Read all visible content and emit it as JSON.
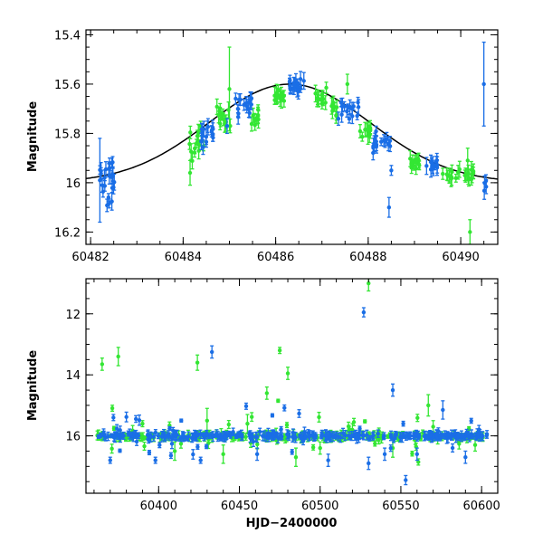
{
  "chart_data": [
    {
      "type": "scatter",
      "title": "",
      "xlabel": "",
      "ylabel": "Magnitude",
      "xlim": [
        60481.9,
        60490.8
      ],
      "ylim": [
        16.25,
        15.38
      ],
      "y_inverted": true,
      "x_ticks": [
        60482,
        60484,
        60486,
        60488,
        60490
      ],
      "y_ticks": [
        15.4,
        15.6,
        15.8,
        16,
        16.2
      ],
      "model_curve": {
        "type": "gaussian",
        "baseline": 16.0,
        "amplitude": 0.4,
        "center": 60486.3,
        "sigma": 1.75
      },
      "series": [
        {
          "color": "#33e633",
          "seed_blocks": [
            [
              60484.1,
              60484.45,
              15.85,
              0.05,
              14
            ],
            [
              60484.7,
              60485.05,
              15.74,
              0.03,
              14
            ],
            [
              60485.45,
              60485.7,
              15.74,
              0.02,
              10
            ],
            [
              60485.95,
              60486.25,
              15.65,
              0.01,
              14
            ],
            [
              60486.85,
              60487.1,
              15.66,
              0.02,
              12
            ],
            [
              60487.2,
              60487.35,
              15.71,
              0.02,
              8
            ],
            [
              60487.8,
              60488.05,
              15.79,
              0.015,
              12
            ],
            [
              60488.9,
              60489.2,
              15.91,
              0.015,
              12
            ],
            [
              60489.6,
              60490.3,
              15.97,
              0.01,
              22
            ]
          ],
          "points": [
            [
              60484.15,
              15.96,
              0.05
            ],
            [
              60485.0,
              15.62,
              0.17
            ],
            [
              60487.55,
              15.6,
              0.04
            ],
            [
              60490.2,
              16.2,
              0.05
            ],
            [
              60490.15,
              15.91,
              0.05
            ]
          ]
        },
        {
          "color": "#1a6ee6",
          "seed_blocks": [
            [
              60482.2,
              60482.55,
              15.99,
              0.04,
              24
            ],
            [
              60484.35,
              60484.65,
              15.81,
              0.03,
              16
            ],
            [
              60485.1,
              60485.5,
              15.68,
              0.02,
              16
            ],
            [
              60486.3,
              60486.65,
              15.61,
              0.015,
              18
            ],
            [
              60487.35,
              60487.8,
              15.7,
              0.02,
              16
            ],
            [
              60488.1,
              60488.5,
              15.84,
              0.02,
              16
            ],
            [
              60489.25,
              60489.5,
              15.93,
              0.01,
              12
            ],
            [
              60490.5,
              60490.58,
              16.02,
              0.02,
              4
            ]
          ],
          "points": [
            [
              60482.2,
              15.99,
              0.17
            ],
            [
              60484.95,
              15.77,
              0.03
            ],
            [
              60488.5,
              15.95,
              0.02
            ],
            [
              60488.45,
              16.1,
              0.04
            ],
            [
              60490.5,
              15.6,
              0.17
            ]
          ]
        }
      ]
    },
    {
      "type": "scatter",
      "title": "",
      "xlabel": "HJD−2400000",
      "ylabel": "Magnitude",
      "xlim": [
        60355,
        60610
      ],
      "ylim": [
        17.88,
        10.85
      ],
      "y_inverted": true,
      "x_ticks": [
        60400,
        60450,
        60500,
        60550,
        60600
      ],
      "y_ticks": [
        12,
        14,
        16
      ],
      "series": [
        {
          "color": "#33e633",
          "baseline": 16.02,
          "x_range": [
            60362,
            60602
          ],
          "count": 260,
          "points": [
            [
              60365,
              13.65,
              0.2
            ],
            [
              60375,
              13.4,
              0.3
            ],
            [
              60424,
              13.6,
              0.25
            ],
            [
              60467,
              14.6,
              0.2
            ],
            [
              60475,
              13.2,
              0.1
            ],
            [
              60480,
              13.95,
              0.2
            ],
            [
              60474,
              14.85,
              0.05
            ],
            [
              60530,
              11.0,
              0.25
            ],
            [
              60567,
              15.0,
              0.35
            ],
            [
              60390,
              15.6,
              0.1
            ],
            [
              60410,
              16.5,
              0.3
            ],
            [
              60430,
              15.5,
              0.4
            ],
            [
              60440,
              16.6,
              0.3
            ],
            [
              60455,
              15.6,
              0.3
            ],
            [
              60485,
              16.7,
              0.3
            ],
            [
              60500,
              16.4,
              0.2
            ],
            [
              60520,
              15.8,
              0.2
            ],
            [
              60545,
              16.4,
              0.3
            ],
            [
              60570,
              15.7,
              0.2
            ],
            [
              60596,
              16.3,
              0.2
            ]
          ]
        },
        {
          "color": "#1a6ee6",
          "baseline": 16.0,
          "x_range": [
            60362,
            60604
          ],
          "count": 320,
          "points": [
            [
              60433,
              13.25,
              0.2
            ],
            [
              60527,
              11.95,
              0.15
            ],
            [
              60545,
              14.5,
              0.2
            ],
            [
              60576,
              15.15,
              0.3
            ],
            [
              60553,
              17.45,
              0.15
            ],
            [
              60370,
              16.8,
              0.1
            ],
            [
              60372,
              15.4,
              0.1
            ],
            [
              60398,
              16.8,
              0.1
            ],
            [
              60414,
              15.5,
              0.05
            ],
            [
              60426,
              16.8,
              0.1
            ],
            [
              60461,
              16.6,
              0.2
            ],
            [
              60505,
              16.8,
              0.2
            ],
            [
              60530,
              16.9,
              0.2
            ],
            [
              60540,
              16.6,
              0.2
            ],
            [
              60560,
              16.6,
              0.2
            ],
            [
              60590,
              16.7,
              0.2
            ]
          ]
        }
      ]
    }
  ]
}
